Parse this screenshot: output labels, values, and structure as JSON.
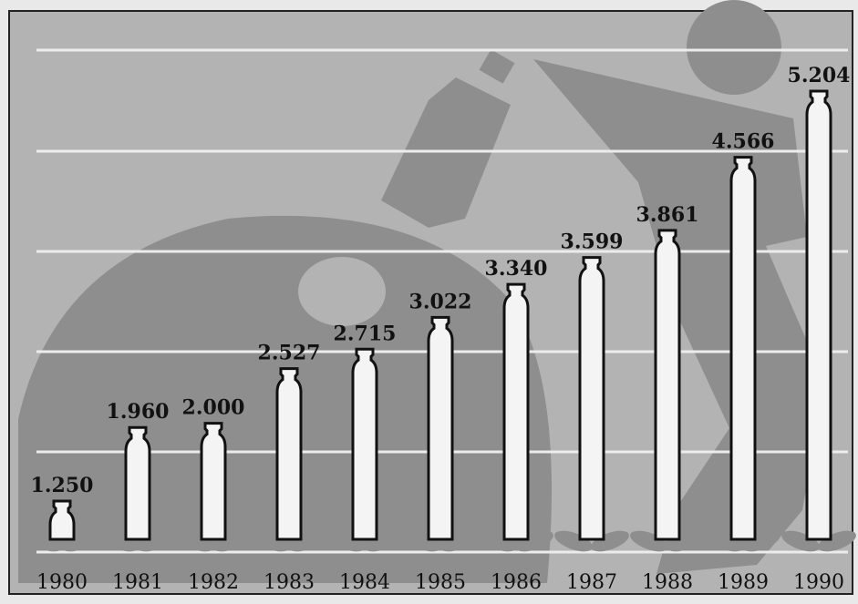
{
  "chart_data": {
    "type": "bottle-bar",
    "categories": [
      "1980",
      "1981",
      "1982",
      "1983",
      "1984",
      "1985",
      "1986",
      "1987",
      "1988",
      "1989",
      "1990"
    ],
    "values": [
      1.25,
      1.96,
      2.0,
      2.527,
      2.715,
      3.022,
      3.34,
      3.599,
      3.861,
      4.566,
      5.204
    ],
    "value_labels": [
      "1.250",
      "1.960",
      "2.000",
      "2.527",
      "2.715",
      "3.022",
      "3.340",
      "3.599",
      "3.861",
      "4.566",
      "5.204"
    ],
    "color": "#f4f4f4"
  }
}
